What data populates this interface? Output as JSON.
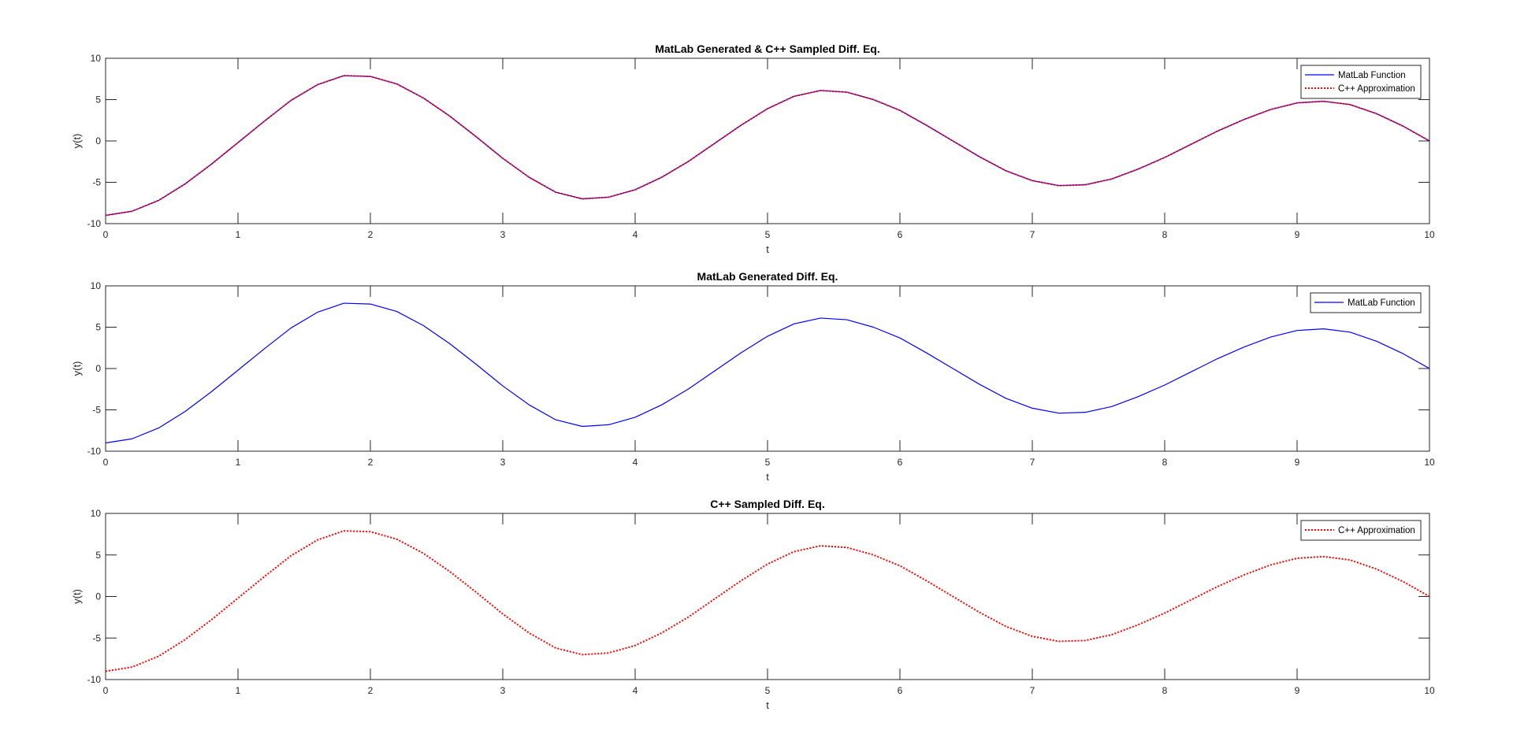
{
  "colors": {
    "matlab": "#0000ff",
    "cpp": "#ff0000",
    "axes": "#262626",
    "background": "#ffffff"
  },
  "chart_data": [
    {
      "type": "line",
      "title": "MatLab Generated & C++ Sampled Diff. Eq.",
      "xlabel": "t",
      "ylabel": "y(t)",
      "xlim": [
        0,
        10
      ],
      "ylim": [
        -10,
        10
      ],
      "xticks": [
        "0",
        "1",
        "2",
        "3",
        "4",
        "5",
        "6",
        "7",
        "8",
        "9",
        "10"
      ],
      "yticks": [
        "10",
        "5",
        "0",
        "-5",
        "-10"
      ],
      "grid": false,
      "legend_position": "top-right",
      "legend": [
        {
          "label": "MatLab Function",
          "style": "solid",
          "color": "#0000ff"
        },
        {
          "label": "C++ Approximation",
          "style": "dotted",
          "color": "#ff0000"
        }
      ],
      "series": [
        {
          "name": "MatLab Function",
          "style": "solid",
          "color": "#0000ff",
          "x": [
            0,
            0.2,
            0.4,
            0.6,
            0.8,
            1.0,
            1.2,
            1.4,
            1.6,
            1.8,
            2.0,
            2.2,
            2.4,
            2.6,
            2.8,
            3.0,
            3.2,
            3.4,
            3.6,
            3.8,
            4.0,
            4.2,
            4.4,
            4.6,
            4.8,
            5.0,
            5.2,
            5.4,
            5.6,
            5.8,
            6.0,
            6.2,
            6.4,
            6.6,
            6.8,
            7.0,
            7.2,
            7.4,
            7.6,
            7.8,
            8.0,
            8.2,
            8.4,
            8.6,
            8.8,
            9.0,
            9.2,
            9.4,
            9.6,
            9.8,
            10.0
          ],
          "y": [
            -9.0,
            -8.5,
            -7.2,
            -5.2,
            -2.8,
            -0.2,
            2.4,
            4.9,
            6.8,
            7.9,
            7.8,
            6.9,
            5.2,
            3.0,
            0.5,
            -2.1,
            -4.4,
            -6.2,
            -7.0,
            -6.8,
            -5.9,
            -4.4,
            -2.5,
            -0.3,
            1.9,
            3.9,
            5.4,
            6.1,
            5.9,
            5.0,
            3.7,
            1.9,
            0.0,
            -1.9,
            -3.6,
            -4.8,
            -5.4,
            -5.3,
            -4.6,
            -3.4,
            -2.0,
            -0.4,
            1.2,
            2.6,
            3.8,
            4.6,
            4.8,
            4.4,
            3.3,
            1.8,
            0.0
          ]
        },
        {
          "name": "C++ Approximation",
          "style": "dotted",
          "color": "#ff0000",
          "x": [
            0,
            0.2,
            0.4,
            0.6,
            0.8,
            1.0,
            1.2,
            1.4,
            1.6,
            1.8,
            2.0,
            2.2,
            2.4,
            2.6,
            2.8,
            3.0,
            3.2,
            3.4,
            3.6,
            3.8,
            4.0,
            4.2,
            4.4,
            4.6,
            4.8,
            5.0,
            5.2,
            5.4,
            5.6,
            5.8,
            6.0,
            6.2,
            6.4,
            6.6,
            6.8,
            7.0,
            7.2,
            7.4,
            7.6,
            7.8,
            8.0,
            8.2,
            8.4,
            8.6,
            8.8,
            9.0,
            9.2,
            9.4,
            9.6,
            9.8,
            10.0
          ],
          "y": [
            -9.0,
            -8.5,
            -7.2,
            -5.2,
            -2.8,
            -0.2,
            2.4,
            4.9,
            6.8,
            7.9,
            7.8,
            6.9,
            5.2,
            3.0,
            0.5,
            -2.1,
            -4.4,
            -6.2,
            -7.0,
            -6.8,
            -5.9,
            -4.4,
            -2.5,
            -0.3,
            1.9,
            3.9,
            5.4,
            6.1,
            5.9,
            5.0,
            3.7,
            1.9,
            0.0,
            -1.9,
            -3.6,
            -4.8,
            -5.4,
            -5.3,
            -4.6,
            -3.4,
            -2.0,
            -0.4,
            1.2,
            2.6,
            3.8,
            4.6,
            4.8,
            4.4,
            3.3,
            1.8,
            0.0
          ]
        }
      ]
    },
    {
      "type": "line",
      "title": "MatLab Generated Diff. Eq.",
      "xlabel": "t",
      "ylabel": "y(t)",
      "xlim": [
        0,
        10
      ],
      "ylim": [
        -10,
        10
      ],
      "xticks": [
        "0",
        "1",
        "2",
        "3",
        "4",
        "5",
        "6",
        "7",
        "8",
        "9",
        "10"
      ],
      "yticks": [
        "10",
        "5",
        "0",
        "-5",
        "-10"
      ],
      "grid": false,
      "legend_position": "top-right",
      "legend": [
        {
          "label": "MatLab Function",
          "style": "solid",
          "color": "#0000ff"
        }
      ],
      "series": [
        {
          "name": "MatLab Function",
          "style": "solid",
          "color": "#0000ff",
          "x": [
            0,
            0.2,
            0.4,
            0.6,
            0.8,
            1.0,
            1.2,
            1.4,
            1.6,
            1.8,
            2.0,
            2.2,
            2.4,
            2.6,
            2.8,
            3.0,
            3.2,
            3.4,
            3.6,
            3.8,
            4.0,
            4.2,
            4.4,
            4.6,
            4.8,
            5.0,
            5.2,
            5.4,
            5.6,
            5.8,
            6.0,
            6.2,
            6.4,
            6.6,
            6.8,
            7.0,
            7.2,
            7.4,
            7.6,
            7.8,
            8.0,
            8.2,
            8.4,
            8.6,
            8.8,
            9.0,
            9.2,
            9.4,
            9.6,
            9.8,
            10.0
          ],
          "y": [
            -9.0,
            -8.5,
            -7.2,
            -5.2,
            -2.8,
            -0.2,
            2.4,
            4.9,
            6.8,
            7.9,
            7.8,
            6.9,
            5.2,
            3.0,
            0.5,
            -2.1,
            -4.4,
            -6.2,
            -7.0,
            -6.8,
            -5.9,
            -4.4,
            -2.5,
            -0.3,
            1.9,
            3.9,
            5.4,
            6.1,
            5.9,
            5.0,
            3.7,
            1.9,
            0.0,
            -1.9,
            -3.6,
            -4.8,
            -5.4,
            -5.3,
            -4.6,
            -3.4,
            -2.0,
            -0.4,
            1.2,
            2.6,
            3.8,
            4.6,
            4.8,
            4.4,
            3.3,
            1.8,
            0.0
          ]
        }
      ]
    },
    {
      "type": "line",
      "title": "C++ Sampled Diff. Eq.",
      "xlabel": "t",
      "ylabel": "y(t)",
      "xlim": [
        0,
        10
      ],
      "ylim": [
        -10,
        10
      ],
      "xticks": [
        "0",
        "1",
        "2",
        "3",
        "4",
        "5",
        "6",
        "7",
        "8",
        "9",
        "10"
      ],
      "yticks": [
        "10",
        "5",
        "0",
        "-5",
        "-10"
      ],
      "grid": false,
      "legend_position": "top-right",
      "legend": [
        {
          "label": "C++ Approximation",
          "style": "dotted",
          "color": "#ff0000"
        }
      ],
      "series": [
        {
          "name": "C++ Approximation",
          "style": "dotted",
          "color": "#ff0000",
          "x": [
            0,
            0.2,
            0.4,
            0.6,
            0.8,
            1.0,
            1.2,
            1.4,
            1.6,
            1.8,
            2.0,
            2.2,
            2.4,
            2.6,
            2.8,
            3.0,
            3.2,
            3.4,
            3.6,
            3.8,
            4.0,
            4.2,
            4.4,
            4.6,
            4.8,
            5.0,
            5.2,
            5.4,
            5.6,
            5.8,
            6.0,
            6.2,
            6.4,
            6.6,
            6.8,
            7.0,
            7.2,
            7.4,
            7.6,
            7.8,
            8.0,
            8.2,
            8.4,
            8.6,
            8.8,
            9.0,
            9.2,
            9.4,
            9.6,
            9.8,
            10.0
          ],
          "y": [
            -9.0,
            -8.5,
            -7.2,
            -5.2,
            -2.8,
            -0.2,
            2.4,
            4.9,
            6.8,
            7.9,
            7.8,
            6.9,
            5.2,
            3.0,
            0.5,
            -2.1,
            -4.4,
            -6.2,
            -7.0,
            -6.8,
            -5.9,
            -4.4,
            -2.5,
            -0.3,
            1.9,
            3.9,
            5.4,
            6.1,
            5.9,
            5.0,
            3.7,
            1.9,
            0.0,
            -1.9,
            -3.6,
            -4.8,
            -5.4,
            -5.3,
            -4.6,
            -3.4,
            -2.0,
            -0.4,
            1.2,
            2.6,
            3.8,
            4.6,
            4.8,
            4.4,
            3.3,
            1.8,
            0.0
          ]
        }
      ]
    }
  ]
}
